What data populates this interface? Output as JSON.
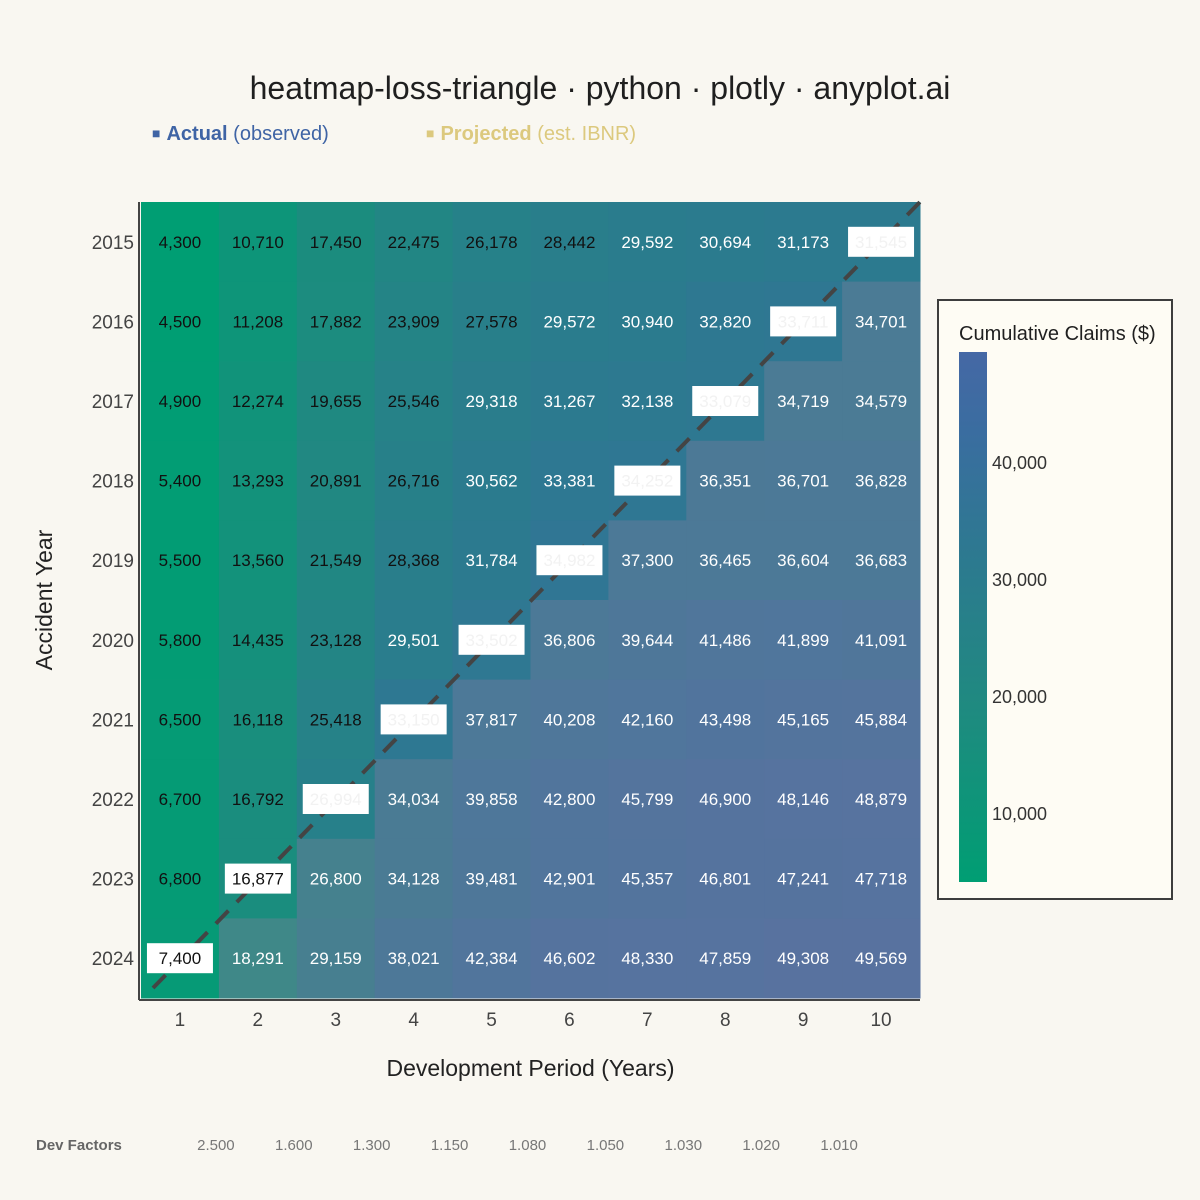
{
  "title": "heatmap-loss-triangle · python · plotly · anyplot.ai",
  "legend": {
    "actual_label": "Actual",
    "actual_note": "(observed)",
    "projected_label": "Projected",
    "projected_note": "(est. IBNR)",
    "marker": "■"
  },
  "colors": {
    "actual": "#3f64a5",
    "projected": "#dcc97e",
    "scale_low": "#009e73",
    "scale_high": "#4568a5",
    "diagonal": "#444444"
  },
  "colorbar": {
    "title": "Cumulative Claims ($)",
    "ticks": [
      "10,000",
      "20,000",
      "30,000",
      "40,000"
    ],
    "tick_values": [
      10000,
      20000,
      30000,
      40000
    ],
    "range": [
      4300,
      49569
    ]
  },
  "dev_factors": {
    "label": "Dev Factors",
    "values": [
      "2.500",
      "1.600",
      "1.300",
      "1.150",
      "1.080",
      "1.050",
      "1.030",
      "1.020",
      "1.010"
    ]
  },
  "chart_data": {
    "type": "heatmap",
    "xlabel": "Development Period (Years)",
    "ylabel": "Accident Year",
    "x": [
      "1",
      "2",
      "3",
      "4",
      "5",
      "6",
      "7",
      "8",
      "9",
      "10"
    ],
    "y": [
      "2015",
      "2016",
      "2017",
      "2018",
      "2019",
      "2020",
      "2021",
      "2022",
      "2023",
      "2024"
    ],
    "values": [
      [
        4300,
        10710,
        17450,
        22475,
        26178,
        28442,
        29592,
        30694,
        31173,
        31545
      ],
      [
        4500,
        11208,
        17882,
        23909,
        27578,
        29572,
        30940,
        32820,
        33711,
        34701
      ],
      [
        4900,
        12274,
        19655,
        25546,
        29318,
        31267,
        32138,
        33079,
        34719,
        34579
      ],
      [
        5400,
        13293,
        20891,
        26716,
        30562,
        33381,
        34252,
        36351,
        36701,
        36828
      ],
      [
        5500,
        13560,
        21549,
        28368,
        31784,
        34982,
        37300,
        36465,
        36604,
        36683
      ],
      [
        5800,
        14435,
        23128,
        29501,
        33502,
        36806,
        39644,
        41486,
        41899,
        41091
      ],
      [
        6500,
        16118,
        25418,
        33150,
        37817,
        40208,
        42160,
        43498,
        45165,
        45884
      ],
      [
        6700,
        16792,
        26994,
        34034,
        39858,
        42800,
        45799,
        46900,
        48146,
        48879
      ],
      [
        6800,
        16877,
        26800,
        34128,
        39481,
        42901,
        45357,
        46801,
        47241,
        47718
      ],
      [
        7400,
        18291,
        29159,
        38021,
        42384,
        46602,
        48330,
        47859,
        49308,
        49569
      ]
    ],
    "value_labels": [
      [
        "4,300",
        "10,710",
        "17,450",
        "22,475",
        "26,178",
        "28,442",
        "29,592",
        "30,694",
        "31,173",
        "31,545"
      ],
      [
        "4,500",
        "11,208",
        "17,882",
        "23,909",
        "27,578",
        "29,572",
        "30,940",
        "32,820",
        "33,711",
        "34,701"
      ],
      [
        "4,900",
        "12,274",
        "19,655",
        "25,546",
        "29,318",
        "31,267",
        "32,138",
        "33,079",
        "34,719",
        "34,579"
      ],
      [
        "5,400",
        "13,293",
        "20,891",
        "26,716",
        "30,562",
        "33,381",
        "34,252",
        "36,351",
        "36,701",
        "36,828"
      ],
      [
        "5,500",
        "13,560",
        "21,549",
        "28,368",
        "31,784",
        "34,982",
        "37,300",
        "36,465",
        "36,604",
        "36,683"
      ],
      [
        "5,800",
        "14,435",
        "23,128",
        "29,501",
        "33,502",
        "36,806",
        "39,644",
        "41,486",
        "41,899",
        "41,091"
      ],
      [
        "6,500",
        "16,118",
        "25,418",
        "33,150",
        "37,817",
        "40,208",
        "42,160",
        "43,498",
        "45,165",
        "45,884"
      ],
      [
        "6,700",
        "16,792",
        "26,994",
        "34,034",
        "39,858",
        "42,800",
        "45,799",
        "46,900",
        "48,146",
        "48,879"
      ],
      [
        "6,800",
        "16,877",
        "26,800",
        "34,128",
        "39,481",
        "42,901",
        "45,357",
        "46,801",
        "47,241",
        "47,718"
      ],
      [
        "7,400",
        "18,291",
        "29,159",
        "38,021",
        "42,384",
        "46,602",
        "48,330",
        "47,859",
        "49,308",
        "49,569"
      ]
    ],
    "latest_diagonal": "highlighted",
    "projected_cells": "below diagonal (faded)",
    "grid": false
  }
}
